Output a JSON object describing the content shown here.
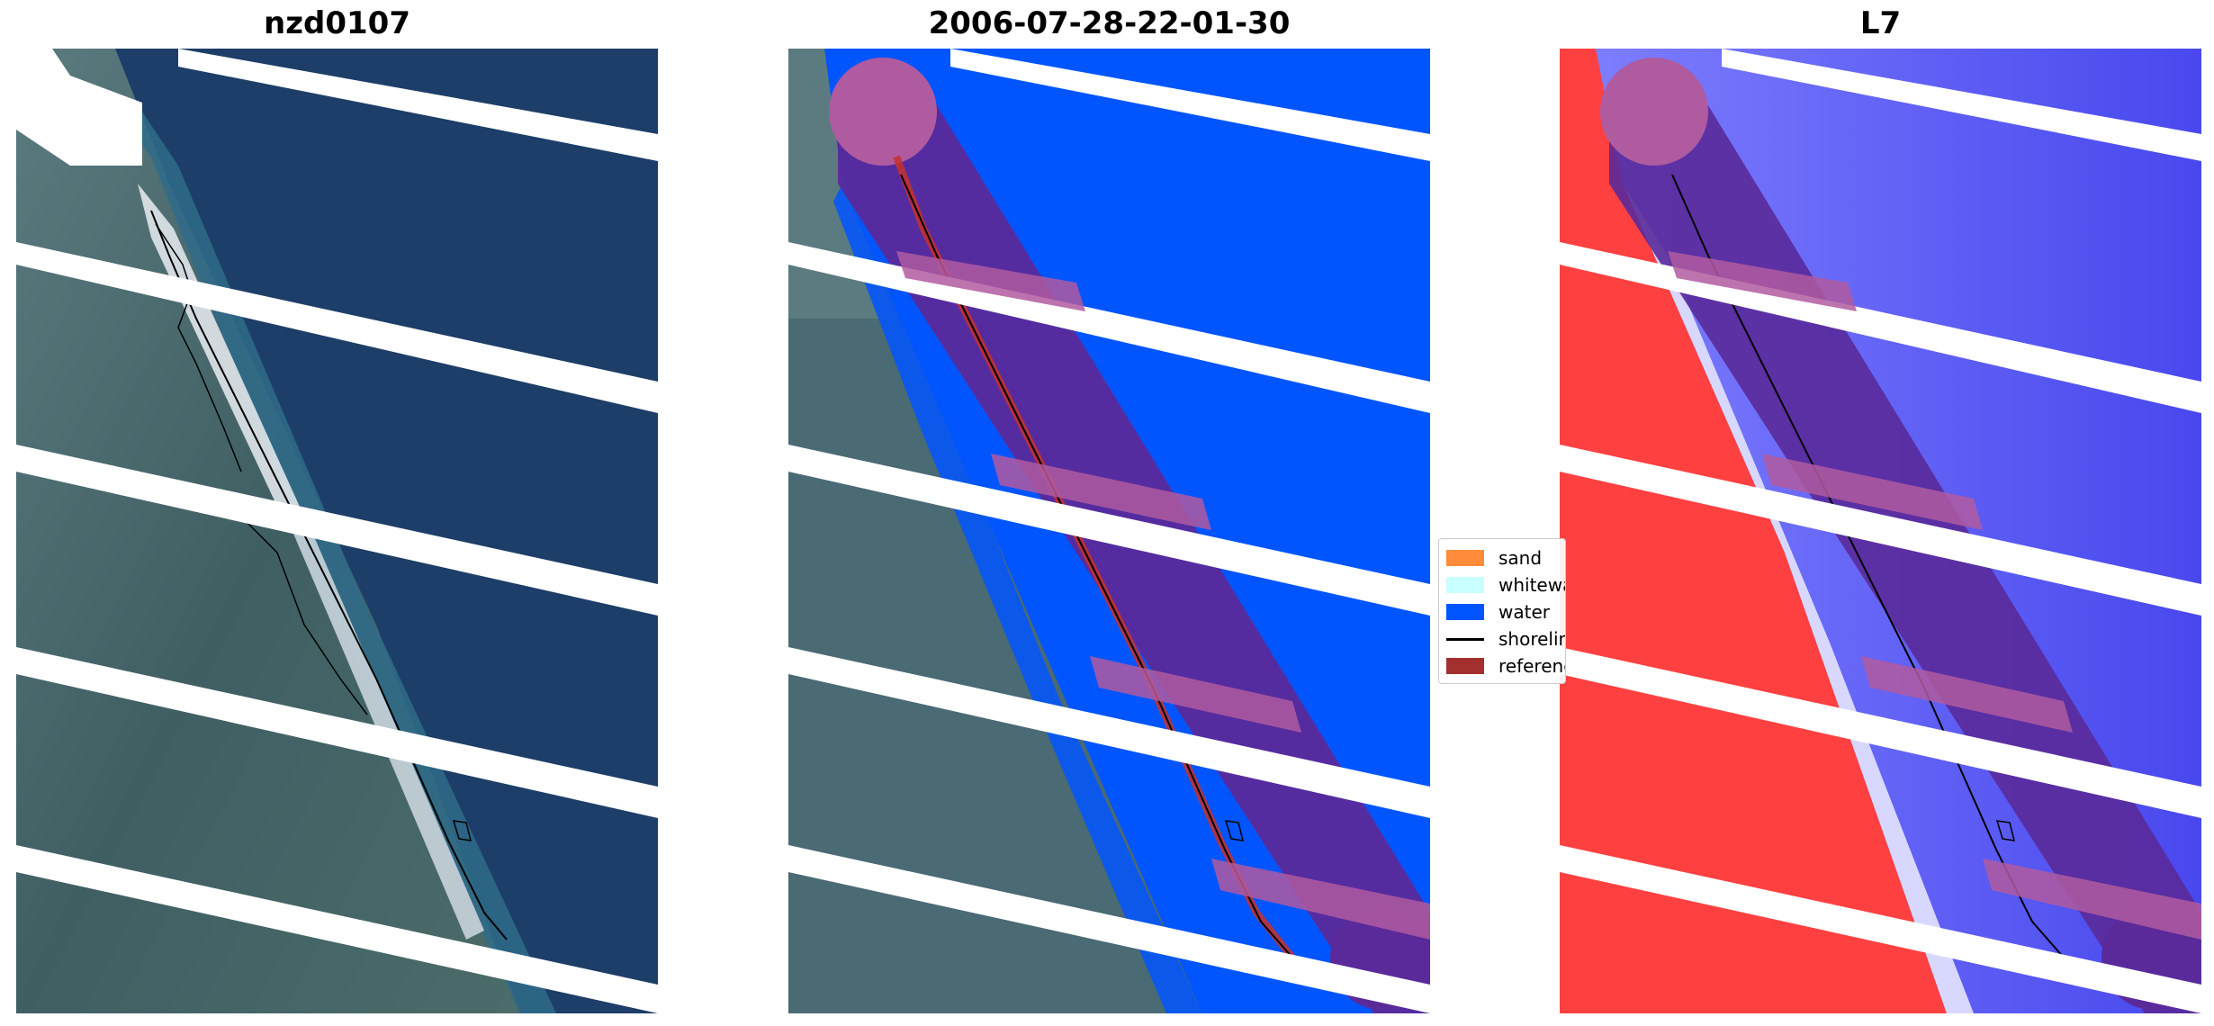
{
  "panels": [
    {
      "title": "nzd0107"
    },
    {
      "title": "2006-07-28-22-01-30"
    },
    {
      "title": "L7"
    }
  ],
  "legend": {
    "items": [
      {
        "label": "sand",
        "color": "#ff8c3a"
      },
      {
        "label": "whitewater",
        "color": "#c8ffff"
      },
      {
        "label": "water",
        "color": "#0055ff"
      },
      {
        "label": "shoreline",
        "color": "#000000"
      },
      {
        "label": "reference shoreline buffer",
        "color": "#a3302e"
      }
    ]
  },
  "colors": {
    "ocean_rgb": "#1c3e68",
    "land_rgb": "#4a6a74",
    "beach": "#d8e0e6",
    "water_class": "#0055ff",
    "buffer": "#b05aa0",
    "buffer_overlap": "#5a2a9a",
    "land_index": "#ff4040",
    "water_index": "#5a5aff",
    "nodata": "#ffffff"
  }
}
